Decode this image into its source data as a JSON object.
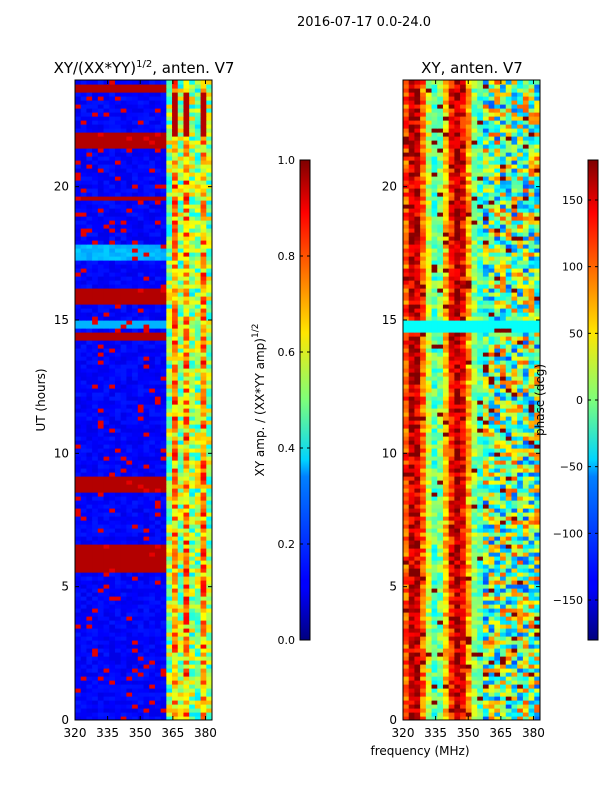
{
  "figure_title": "2016-07-17 0.0-24.0",
  "chart_data": [
    {
      "type": "heatmap",
      "title": "XY/(XX*YY)",
      "title_exponent": "1/2",
      "title_suffix": ", anten. V7",
      "xlabel": "",
      "ylabel": "UT (hours)",
      "xlim": [
        320,
        383
      ],
      "ylim": [
        0,
        24
      ],
      "xticks": [
        320,
        335,
        350,
        365,
        380
      ],
      "yticks": [
        0,
        5,
        10,
        15,
        20
      ],
      "colormap": "jet",
      "colorbar": {
        "label": "XY amp. / (XX*YY amp)",
        "label_exponent": "1/2",
        "range": [
          0.0,
          1.0
        ],
        "ticks": [
          "0.0",
          "0.2",
          "0.4",
          "0.6",
          "0.8",
          "1.0"
        ]
      },
      "features": [
        {
          "note": "low amplitude background below 360 MHz",
          "value": 0.1
        },
        {
          "note": "saturated horizontal bands around 5.5-6.5 h, 9 h, 14.5 h, 15.5-16 h, 21.5-22 h",
          "value": 0.95
        },
        {
          "note": "broadband band near 17.5 h",
          "value": 0.3
        },
        {
          "note": "high-frequency region 360-383 MHz with mixed values",
          "value": 0.6
        }
      ]
    },
    {
      "type": "heatmap",
      "title": "XY, anten. V7",
      "xlabel": "frequency (MHz)",
      "ylabel": "",
      "xlim": [
        320,
        383
      ],
      "ylim": [
        0,
        24
      ],
      "xticks": [
        320,
        335,
        350,
        365,
        380
      ],
      "yticks": [
        0,
        5,
        10,
        15,
        20
      ],
      "colormap": "jet",
      "colorbar": {
        "label": "phase (deg)",
        "range": [
          -180,
          180
        ],
        "ticks": [
          "−150",
          "−100",
          "−50",
          "0",
          "50",
          "100",
          "150"
        ]
      },
      "features": [
        {
          "note": "phase varies in vertical stripes across frequency",
          "value": 180
        },
        {
          "note": "cyan horizontal band near 14.8 h",
          "value": -40
        },
        {
          "note": "mixed phase region above 360 MHz",
          "value": 0
        }
      ]
    }
  ]
}
